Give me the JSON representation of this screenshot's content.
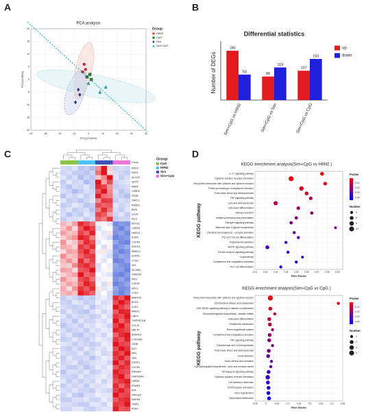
{
  "chart_data": [
    {
      "type": "scatter",
      "panel": "A",
      "title": "PCA analysis",
      "xlabel": "PC1(19.84%)",
      "ylabel": "PC2(14.80%)",
      "xlim": [
        -40,
        40
      ],
      "xticks": [
        -40,
        -30,
        -20,
        -10,
        0,
        10,
        20,
        30,
        40
      ],
      "ylim": [
        -20,
        20
      ],
      "yticks": [
        -20,
        -15,
        -10,
        -5,
        0,
        5,
        10,
        15,
        20
      ],
      "legend_title": "Group",
      "series": [
        {
          "name": "H9N2",
          "color": "#d62728",
          "marker": "circle",
          "x": [
            -3,
            -2,
            -4
          ],
          "y": [
            6,
            4,
            3
          ]
        },
        {
          "name": "CpG",
          "color": "#2e7d32",
          "marker": "square",
          "x": [
            -1,
            1,
            2
          ],
          "y": [
            1,
            2,
            0
          ]
        },
        {
          "name": "Sim",
          "color": "#1f3a93",
          "marker": "diamond",
          "x": [
            -7,
            -6,
            -9
          ],
          "y": [
            -4,
            -6,
            -9
          ]
        },
        {
          "name": "Sim+CpG",
          "color": "#1bb5b5",
          "marker": "triangle",
          "x": [
            0,
            8,
            12
          ],
          "y": [
            -1.5,
            -5,
            -3
          ]
        }
      ]
    },
    {
      "type": "bar",
      "panel": "B",
      "title": "Differential statistics",
      "ylabel": "Number of DEGs",
      "categories": [
        "Sim+CpG vs H9N2",
        "Sim+CpG vs Sim",
        "Sim+CpG vs CpG"
      ],
      "ylim": [
        0,
        200
      ],
      "series": [
        {
          "name": "up",
          "color": "#e41a1c",
          "values": [
            180,
            86,
            107
          ]
        },
        {
          "name": "down",
          "color": "#1f1fe0",
          "values": [
            93,
            119,
            150
          ]
        }
      ]
    },
    {
      "type": "heatmap",
      "panel": "C",
      "legend_title": "Group",
      "group_bar_label": "Group",
      "groups": [
        {
          "name": "CpG",
          "color": "#8bc34a"
        },
        {
          "name": "H9N2",
          "color": "#4fc3f7"
        },
        {
          "name": "Sim",
          "color": "#3f51b5"
        },
        {
          "name": "Sim+CpG",
          "color": "#e879d6"
        }
      ],
      "column_groups": [
        0,
        0,
        0,
        1,
        1,
        1,
        2,
        2,
        2,
        3,
        3,
        3
      ],
      "zlim": [
        -2,
        2
      ],
      "colors": [
        "#3b5bd6",
        "#ffffff",
        "#e3121b"
      ],
      "rows": [
        "RAG2",
        "RAG1",
        "ALOX5",
        "SOX5",
        "RBP8",
        "CEBPA",
        "FRZB",
        "ONCL1",
        "RASD1",
        "BLB1",
        "IL21R",
        "DLL1",
        "APOC2",
        "CARD9",
        "HMOX1",
        "IL2RA",
        "CXCR3",
        "DOCK4",
        "MMRL4",
        "SCRN1",
        "CTSD",
        "AXL",
        "SLC6B1",
        "CMKLR1",
        "PIK3",
        "CSF3R",
        "NPC1",
        "CTSS",
        "MAPK13",
        "BCR3",
        "IL1R1",
        "PANX1",
        "GBP4",
        "TNFRSF11B",
        "CCL20",
        "MELTF",
        "ANKRD1",
        "CYP26A1",
        "CD38",
        "MX1",
        "IRF1",
        "JUN",
        "DUSP1",
        "CXCR4",
        "DNAJA4",
        "HSP90AA1",
        "HSPA5",
        "IFNAR1",
        "ERF",
        "GPR183",
        "MAPK8",
        "TNIP3",
        "PDK4"
      ],
      "values": [
        [
          -0.4,
          -0.5,
          -0.3,
          -0.7,
          -0.6,
          -0.8,
          0.9,
          2.6,
          0.4,
          -0.5,
          -0.4,
          -0.5
        ],
        [
          -0.5,
          -0.4,
          -0.6,
          -0.6,
          -0.7,
          -0.5,
          1.2,
          2.4,
          0.3,
          -0.4,
          -0.5,
          -0.6
        ],
        [
          -0.3,
          -0.6,
          -0.4,
          -0.8,
          -0.5,
          -0.7,
          0.5,
          1.0,
          2.5,
          -0.3,
          -0.6,
          -0.4
        ],
        [
          -0.6,
          -0.3,
          -0.5,
          -0.4,
          -0.8,
          -0.6,
          2.2,
          0.8,
          1.5,
          -0.5,
          -0.4,
          -0.3
        ],
        [
          -0.5,
          -0.7,
          -0.4,
          -0.5,
          -0.3,
          -0.6,
          1.8,
          1.6,
          0.9,
          -0.6,
          -0.5,
          -0.4
        ],
        [
          -0.4,
          -0.5,
          -0.8,
          -0.6,
          -0.4,
          -0.5,
          1.4,
          2.1,
          1.0,
          -0.4,
          -0.7,
          -0.5
        ],
        [
          -0.7,
          -0.4,
          -0.5,
          -0.3,
          -0.6,
          -0.4,
          1.9,
          1.2,
          1.1,
          -0.5,
          -0.6,
          -0.8
        ],
        [
          -0.3,
          -0.6,
          -0.5,
          -0.7,
          -0.5,
          -0.3,
          1.0,
          1.7,
          1.6,
          -0.6,
          -0.4,
          -0.5
        ],
        [
          -0.6,
          -0.5,
          -0.3,
          -0.4,
          -0.7,
          -0.6,
          1.5,
          1.3,
          1.4,
          -0.3,
          -0.5,
          -0.4
        ],
        [
          -0.5,
          -0.3,
          -0.6,
          -0.5,
          -0.4,
          -0.7,
          1.1,
          1.8,
          1.2,
          -0.4,
          -0.6,
          -0.3
        ],
        [
          -0.4,
          -0.7,
          -0.5,
          -0.6,
          -0.3,
          -0.5,
          1.6,
          1.4,
          0.8,
          -0.5,
          -0.3,
          -0.6
        ],
        [
          -0.6,
          -0.4,
          -0.4,
          -0.3,
          -0.6,
          -0.4,
          1.3,
          1.1,
          1.7,
          -0.6,
          -0.5,
          -0.5
        ],
        [
          0.6,
          0.4,
          0.8,
          1.8,
          1.5,
          1.2,
          -0.2,
          0.1,
          -0.3,
          -1.4,
          -1.2,
          -1.3
        ],
        [
          0.5,
          0.9,
          0.3,
          1.4,
          2.0,
          1.6,
          -0.4,
          -0.1,
          0.0,
          -1.2,
          -1.5,
          -1.1
        ],
        [
          0.8,
          0.5,
          0.6,
          1.6,
          1.3,
          1.9,
          -0.1,
          -0.3,
          0.2,
          -1.3,
          -1.1,
          -1.4
        ],
        [
          0.4,
          0.7,
          0.9,
          1.9,
          1.7,
          1.1,
          0.1,
          -0.2,
          -0.4,
          -1.5,
          -1.3,
          -1.2
        ],
        [
          0.9,
          0.3,
          0.5,
          1.2,
          1.8,
          1.5,
          -0.3,
          0.0,
          -0.1,
          -1.1,
          -1.4,
          -1.5
        ],
        [
          0.7,
          0.6,
          0.4,
          1.7,
          1.4,
          1.8,
          0.0,
          -0.4,
          0.1,
          -1.4,
          -1.2,
          -1.0
        ],
        [
          0.3,
          0.8,
          0.7,
          1.5,
          1.9,
          1.3,
          -0.2,
          0.2,
          -0.3,
          -1.2,
          -1.5,
          -1.3
        ],
        [
          1.0,
          0.5,
          0.6,
          1.3,
          1.6,
          1.7,
          -0.1,
          -0.2,
          -0.4,
          -1.3,
          -1.1,
          -1.2
        ],
        [
          0.6,
          0.9,
          0.5,
          1.8,
          1.2,
          1.6,
          0.1,
          -0.3,
          0.0,
          -1.5,
          -1.4,
          -1.1
        ],
        [
          0.5,
          0.4,
          1.0,
          1.6,
          1.8,
          1.4,
          -0.4,
          0.0,
          -0.2,
          -1.1,
          -1.3,
          -1.4
        ],
        [
          0.8,
          0.7,
          0.3,
          1.4,
          1.5,
          2.0,
          -0.3,
          -0.1,
          0.1,
          -1.2,
          -1.2,
          -1.5
        ],
        [
          0.4,
          0.6,
          0.8,
          2.1,
          1.3,
          1.5,
          0.0,
          -0.2,
          -0.3,
          -1.4,
          -1.5,
          -1.2
        ],
        [
          0.9,
          0.5,
          0.4,
          1.5,
          1.7,
          1.2,
          -0.2,
          0.1,
          -0.1,
          -1.3,
          -1.1,
          -1.4
        ],
        [
          0.5,
          0.8,
          0.6,
          1.3,
          1.9,
          1.6,
          -0.1,
          -0.4,
          0.2,
          -1.5,
          -1.3,
          -1.1
        ],
        [
          0.7,
          0.3,
          0.9,
          1.7,
          1.4,
          1.8,
          0.2,
          -0.3,
          -0.2,
          -1.1,
          -1.4,
          -1.3
        ],
        [
          0.6,
          0.7,
          0.5,
          1.9,
          1.6,
          1.3,
          -0.3,
          0.0,
          -0.4,
          -1.2,
          -1.5,
          -1.2
        ],
        [
          -0.6,
          -0.4,
          -0.5,
          -0.7,
          -0.5,
          -0.6,
          -0.3,
          -0.2,
          -0.4,
          1.8,
          1.4,
          2.1
        ],
        [
          -0.5,
          -0.6,
          -0.3,
          -0.4,
          -0.6,
          -0.5,
          -0.2,
          -0.4,
          -0.3,
          1.5,
          2.0,
          1.6
        ],
        [
          -0.4,
          -0.5,
          -0.6,
          -0.5,
          -0.3,
          -0.7,
          -0.4,
          -0.3,
          -0.2,
          2.2,
          1.6,
          1.3
        ],
        [
          -0.6,
          -0.3,
          -0.5,
          -0.6,
          -0.7,
          -0.4,
          -0.2,
          -0.5,
          -0.3,
          1.4,
          1.9,
          1.8
        ],
        [
          -0.3,
          -0.6,
          -0.4,
          -0.5,
          -0.4,
          -0.6,
          -0.5,
          -0.2,
          -0.4,
          1.7,
          1.5,
          2.0
        ],
        [
          -0.5,
          -0.4,
          -0.7,
          -0.3,
          -0.5,
          -0.5,
          -0.3,
          -0.4,
          -0.2,
          2.0,
          1.3,
          1.7
        ],
        [
          -0.7,
          -0.5,
          -0.4,
          -0.6,
          -0.3,
          -0.4,
          -0.2,
          -0.3,
          -0.5,
          1.6,
          2.1,
          1.4
        ],
        [
          -0.4,
          -0.6,
          -0.5,
          -0.4,
          -0.6,
          -0.3,
          -0.4,
          -0.2,
          -0.3,
          1.9,
          1.7,
          1.5
        ],
        [
          -0.5,
          -0.3,
          -0.6,
          -0.7,
          -0.4,
          -0.5,
          -0.3,
          -0.5,
          -0.2,
          1.3,
          1.8,
          2.2
        ],
        [
          -0.6,
          -0.5,
          -0.3,
          -0.5,
          -0.6,
          -0.4,
          -0.2,
          -0.3,
          -0.4,
          1.7,
          1.4,
          1.9
        ],
        [
          -0.3,
          -0.4,
          -0.6,
          -0.4,
          -0.5,
          -0.6,
          -0.5,
          -0.2,
          -0.3,
          2.1,
          1.6,
          1.5
        ],
        [
          -0.5,
          -0.6,
          -0.4,
          -0.6,
          -0.3,
          -0.5,
          -0.3,
          -0.4,
          -0.2,
          1.5,
          2.0,
          1.7
        ],
        [
          -0.4,
          -0.5,
          -0.5,
          -0.3,
          -0.6,
          -0.4,
          -0.2,
          -0.5,
          -0.4,
          1.8,
          1.5,
          2.0
        ],
        [
          -0.6,
          -0.3,
          -0.5,
          -0.5,
          -0.4,
          -0.7,
          -0.4,
          -0.2,
          -0.3,
          1.6,
          1.9,
          1.4
        ],
        [
          -0.5,
          -0.4,
          -0.3,
          -0.6,
          -0.5,
          -0.4,
          -0.3,
          -0.3,
          -0.5,
          2.0,
          1.4,
          1.8
        ],
        [
          -0.4,
          -0.6,
          -0.6,
          -0.4,
          -0.7,
          -0.5,
          -0.2,
          -0.4,
          -0.2,
          1.4,
          1.8,
          1.6
        ],
        [
          -0.7,
          -0.4,
          -0.4,
          -0.5,
          -0.3,
          -0.6,
          -0.5,
          -0.3,
          -0.3,
          1.9,
          1.6,
          1.5
        ],
        [
          -0.5,
          -0.5,
          -0.6,
          -0.3,
          -0.5,
          -0.4,
          -0.3,
          -0.2,
          -0.4,
          1.7,
          2.1,
          1.3
        ],
        [
          -0.3,
          -0.6,
          -0.4,
          -0.6,
          -0.4,
          -0.5,
          -0.2,
          -0.5,
          -0.3,
          1.5,
          1.7,
          1.9
        ],
        [
          -0.6,
          -0.4,
          -0.5,
          -0.4,
          -0.6,
          -0.3,
          -0.4,
          -0.3,
          -0.2,
          1.8,
          1.3,
          1.7
        ],
        [
          -0.4,
          -0.5,
          -0.3,
          -0.5,
          -0.5,
          -0.6,
          -0.3,
          -0.4,
          -0.5,
          1.6,
          1.9,
          1.5
        ],
        [
          -0.5,
          -0.3,
          -0.6,
          -0.7,
          -0.4,
          -0.4,
          -0.2,
          -0.3,
          -0.3,
          2.0,
          1.5,
          1.6
        ],
        [
          -0.6,
          -0.6,
          -0.4,
          -0.4,
          -0.3,
          -0.5,
          -0.5,
          -0.2,
          -0.4,
          1.4,
          1.7,
          1.8
        ],
        [
          -0.4,
          -0.4,
          -0.5,
          -0.6,
          -0.6,
          -0.3,
          -0.3,
          -0.5,
          -0.2,
          1.7,
          1.6,
          2.0
        ],
        [
          -0.5,
          -0.5,
          -0.3,
          -0.3,
          -0.5,
          -0.6,
          -0.4,
          -0.3,
          -0.3,
          1.9,
          1.4,
          1.5
        ]
      ]
    },
    {
      "type": "dot",
      "panel": "D",
      "title": "KEGG enrichment analysis(Sim+CpG vs H9N2 )",
      "xlabel": "Rich Factor",
      "ylabel": "KEGG pathway",
      "xlim": [
        0.01,
        0.095
      ],
      "xticks": [
        0.01,
        0.02,
        0.03,
        0.04,
        0.05,
        0.06,
        0.07,
        0.08,
        0.09
      ],
      "categories": [
        "IL-17 signaling pathway",
        "Cytokine-cytokine receptor interaction",
        "Viral protein interaction with cytokine and cytokine receptor",
        "Protein processing in endoplasmic reticulum",
        "Fluid shear stress and atherosclerosis",
        "TNF signaling pathway",
        "Lipid and atherosclerosis",
        "Osteoclast differentiation",
        "Salivary secretion",
        "Antigen processing and presentation",
        "Estrogen signaling pathway",
        "Mannose type O-glycan biosynthesis",
        "Chemical carcinogenesis - receptor activation",
        "Th1 and Th2 cell differentiation",
        "Amphetamine addiction",
        "MAPK signaling pathway",
        "Toll-like receptor signaling pathway",
        "Legionellosis",
        "Complement and coagulation cascades",
        "Th17 cell differentiation"
      ],
      "values": [
        0.075,
        0.045,
        0.078,
        0.055,
        0.06,
        0.064,
        0.03,
        0.052,
        0.065,
        0.05,
        0.045,
        0.088,
        0.048,
        0.052,
        0.04,
        0.022,
        0.042,
        0.056,
        0.05,
        0.035
      ],
      "sizes": [
        6,
        12,
        5,
        9,
        6,
        5,
        8,
        5,
        4,
        4,
        4,
        2,
        3,
        3,
        3,
        6,
        3,
        2,
        3,
        3
      ],
      "pvalues": [
        0.002,
        0.003,
        0.004,
        0.006,
        0.008,
        0.01,
        0.012,
        0.015,
        0.018,
        0.02,
        0.022,
        0.025,
        0.027,
        0.029,
        0.031,
        0.033,
        0.035,
        0.037,
        0.039,
        0.041
      ],
      "color_title": "Pvalue",
      "plim": [
        0,
        0.045
      ],
      "pticks": [
        0.01,
        0.02,
        0.03,
        0.04
      ],
      "size_title": "Number",
      "size_ticks": [
        3,
        6,
        9,
        12
      ]
    },
    {
      "type": "dot",
      "title": "KEGG enrichment analysis(Sim+CpG vs CpG )",
      "xlabel": "Rich Factor",
      "ylabel": "KEGG pathway",
      "xlim": [
        -0.05,
        0.35
      ],
      "xticks": [
        -0.05,
        0,
        0.05,
        0.1,
        0.15,
        0.2,
        0.25,
        0.3,
        0.35
      ],
      "categories": [
        "Viral protein interaction with cytokine and cytokine receptor",
        "C5-Branched dibasic acid metabolism",
        "AGE-RAGE signaling pathway in diabetic complications",
        "Glycosaminoglycan biosynthesis - keratan sulfate",
        "Osteoclast differentiation",
        "Glutathione metabolism",
        "Renin-angiotensin system",
        "Complement and coagulation cascades",
        "TNF signaling pathway",
        "Pantothenate and CoA biosynthesis",
        "Fluid shear stress and atherosclerosis",
        "Focal adhesion",
        "Dorso-ventral axis formation",
        "Glycosphingolipid biosynthesis - lacto and neolacto series",
        "NF-kappa B signaling pathway",
        "Cytokine-cytokine receptor interaction",
        "Cell adhesion molecules",
        "ECM-receptor interaction",
        "Axon regeneration",
        "Glycerolipid metabolism"
      ],
      "values": [
        0.02,
        0.33,
        0.02,
        0.04,
        0.015,
        0.018,
        0.03,
        0.017,
        0.015,
        0.03,
        0.013,
        0.01,
        0.025,
        0.022,
        0.012,
        0.008,
        0.009,
        0.012,
        0.011,
        0.014
      ],
      "sizes": [
        4,
        1,
        2,
        1,
        2,
        2,
        1,
        2,
        2,
        1,
        2,
        2,
        1,
        1,
        2,
        3,
        2,
        2,
        2,
        2
      ],
      "pvalues": [
        0.001,
        0.003,
        0.006,
        0.008,
        0.011,
        0.013,
        0.015,
        0.018,
        0.02,
        0.022,
        0.025,
        0.027,
        0.029,
        0.031,
        0.033,
        0.035,
        0.037,
        0.039,
        0.041,
        0.043
      ],
      "color_title": "Pvalue",
      "plim": [
        0,
        0.045
      ],
      "pticks": [
        0.01,
        0.02,
        0.03,
        0.04
      ],
      "size_title": "Number",
      "size_ticks": [
        1,
        2,
        3,
        4
      ]
    }
  ]
}
